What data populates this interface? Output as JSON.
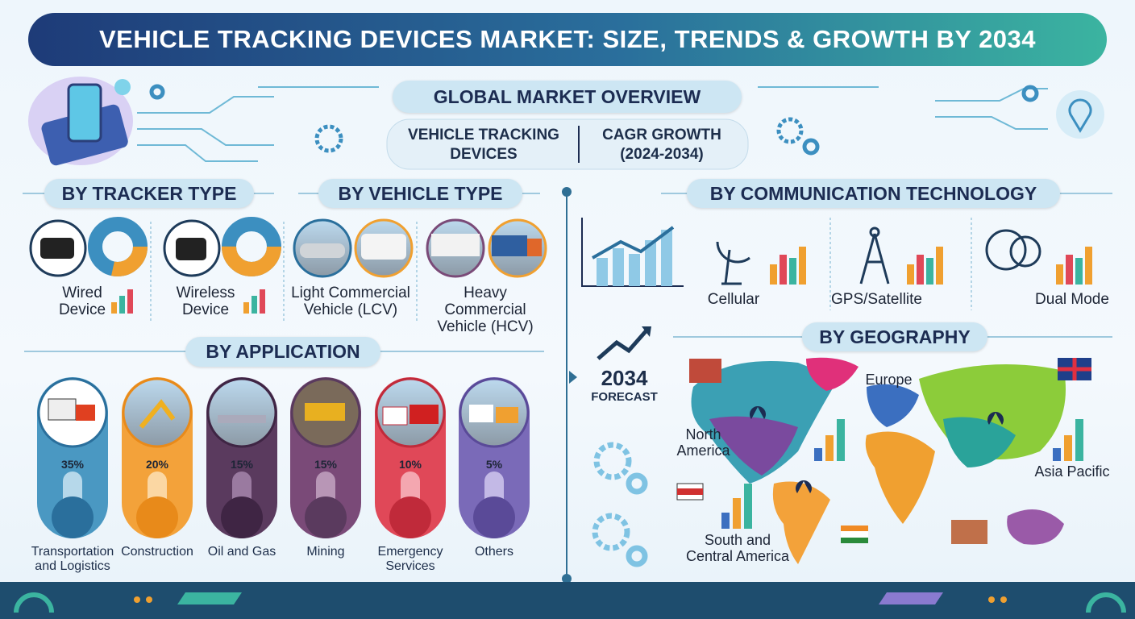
{
  "header": {
    "title": "VEHICLE TRACKING DEVICES MARKET: SIZE, TRENDS & GROWTH BY 2034"
  },
  "overview": {
    "title": "GLOBAL MARKET OVERVIEW",
    "left": "VEHICLE TRACKING DEVICES",
    "right": "CAGR GROWTH (2024-2034)"
  },
  "tracker_type": {
    "title": "BY TRACKER TYPE",
    "items": [
      "Wired Device",
      "Wireless Device"
    ]
  },
  "vehicle_type": {
    "title": "BY VEHICLE TYPE",
    "items": [
      "Light Commercial Vehicle (LCV)",
      "Heavy Commercial Vehicle (HCV)"
    ]
  },
  "communication": {
    "title": "BY COMMUNICATION TECHNOLOGY",
    "items": [
      "Cellular",
      "GPS/Satellite",
      "Dual Mode"
    ]
  },
  "application": {
    "title": "BY APPLICATION",
    "items": [
      {
        "label": "Transportation and Logistics",
        "share": "35%"
      },
      {
        "label": "Construction",
        "share": "20%"
      },
      {
        "label": "Oil and Gas",
        "share": "15%"
      },
      {
        "label": "Mining",
        "share": "15%"
      },
      {
        "label": "Emergency Services",
        "share": "10%"
      },
      {
        "label": "Others",
        "share": "5%"
      }
    ]
  },
  "forecast": {
    "year": "2034",
    "label": "FORECAST"
  },
  "geography": {
    "title": "BY GEOGRAPHY",
    "regions": [
      "North America",
      "Europe",
      "Asia Pacific",
      "South and Central America"
    ]
  }
}
